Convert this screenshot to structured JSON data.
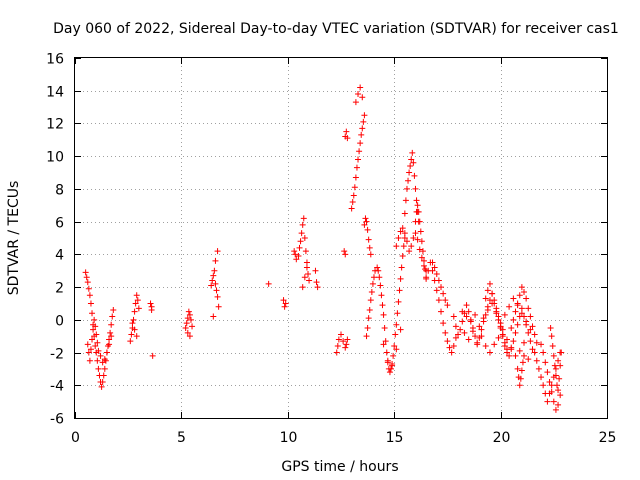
{
  "chart_data": {
    "type": "scatter",
    "title": "Day 060 of 2022, Sidereal Day-to-day VTEC variation (SDTVAR) for receiver cas1",
    "xlabel": "GPS time / hours",
    "ylabel": "SDTVAR / TECUs",
    "xlim": [
      0,
      25
    ],
    "ylim": [
      -6,
      16
    ],
    "grid": true,
    "marker": "+",
    "color": "#ff0000",
    "xticks": [
      "0",
      "5",
      "10",
      "15",
      "20",
      "25"
    ],
    "yticks": [
      "-6",
      "-4",
      "-2",
      "0",
      "2",
      "4",
      "6",
      "8",
      "10",
      "12",
      "14",
      "16"
    ],
    "series": [
      {
        "name": "SDTVAR",
        "x": [
          0.5,
          0.55,
          0.6,
          0.65,
          0.7,
          0.75,
          0.8,
          0.85,
          0.9,
          0.95,
          1.0,
          1.05,
          1.1,
          1.15,
          1.2,
          1.25,
          1.3,
          1.35,
          1.4,
          1.45,
          1.5,
          1.55,
          1.6,
          1.65,
          1.7,
          1.75,
          1.8,
          0.6,
          0.65,
          0.7,
          0.75,
          0.8,
          0.85,
          0.9,
          0.95,
          1.0,
          1.05,
          1.1,
          1.2,
          1.3,
          1.4,
          1.5,
          1.6,
          1.7,
          2.6,
          2.65,
          2.7,
          2.75,
          2.8,
          2.85,
          2.9,
          2.95,
          3.0,
          2.7,
          2.8,
          2.9,
          3.55,
          3.6,
          3.6,
          3.65,
          5.2,
          5.25,
          5.3,
          5.35,
          5.4,
          5.45,
          5.5,
          5.3,
          5.4,
          6.4,
          6.45,
          6.5,
          6.55,
          6.6,
          6.65,
          6.7,
          6.75,
          6.5,
          6.6,
          6.7,
          9.1,
          9.8,
          9.85,
          9.9,
          10.3,
          10.35,
          10.4,
          10.5,
          10.55,
          10.6,
          10.65,
          10.7,
          10.75,
          10.8,
          10.85,
          10.9,
          10.95,
          11.0,
          10.7,
          10.8,
          10.9,
          11.3,
          11.35,
          11.4,
          12.3,
          12.35,
          12.4,
          12.5,
          12.6,
          12.7,
          12.75,
          12.8,
          12.65,
          12.7,
          12.7,
          12.75,
          12.8,
          13.0,
          13.05,
          13.1,
          13.15,
          13.2,
          13.25,
          13.3,
          13.35,
          13.4,
          13.45,
          13.5,
          13.55,
          13.6,
          13.2,
          13.3,
          13.4,
          13.5,
          13.7,
          13.75,
          13.8,
          13.85,
          13.9,
          13.95,
          14.0,
          14.05,
          14.1,
          13.6,
          13.65,
          13.7,
          13.75,
          13.8,
          13.85,
          13.9,
          14.2,
          14.25,
          14.3,
          14.35,
          14.4,
          14.45,
          14.5,
          14.55,
          14.6,
          14.65,
          14.7,
          14.75,
          14.8,
          14.85,
          14.9,
          14.95,
          15.0,
          15.05,
          15.1,
          15.15,
          15.2,
          15.25,
          15.3,
          15.35,
          15.4,
          15.45,
          15.5,
          14.5,
          14.7,
          14.9,
          15.1,
          15.3,
          15.1,
          15.2,
          15.3,
          15.4,
          15.5,
          15.6,
          15.7,
          15.8,
          15.9,
          16.0,
          16.1,
          16.2,
          16.3,
          16.4,
          16.5,
          15.5,
          15.55,
          15.6,
          15.65,
          15.7,
          15.75,
          15.8,
          15.85,
          15.9,
          15.95,
          16.0,
          16.05,
          16.1,
          16.15,
          16.0,
          16.05,
          16.1,
          16.15,
          16.2,
          16.25,
          16.3,
          16.35,
          16.4,
          16.45,
          16.5,
          16.5,
          16.6,
          16.7,
          16.8,
          16.9,
          17.0,
          17.1,
          17.2,
          17.3,
          17.4,
          17.5,
          17.6,
          17.7,
          17.8,
          17.9,
          16.8,
          16.9,
          17.0,
          17.1,
          17.2,
          17.3,
          17.4,
          17.5,
          17.8,
          17.9,
          18.0,
          18.1,
          18.2,
          18.3,
          18.4,
          18.5,
          18.6,
          18.7,
          18.8,
          18.9,
          19.0,
          19.1,
          19.2,
          19.3,
          19.4,
          19.5,
          19.6,
          19.7,
          19.8,
          19.9,
          20.0,
          20.1,
          20.2,
          20.3,
          20.4,
          20.5,
          20.6,
          20.7,
          20.8,
          20.9,
          21.0,
          21.1,
          21.2,
          21.3,
          21.4,
          21.5,
          18.2,
          18.4,
          18.6,
          18.8,
          19.0,
          19.2,
          19.4,
          19.6,
          19.8,
          20.0,
          20.2,
          20.4,
          20.6,
          20.8,
          21.0,
          21.2,
          21.4,
          18.3,
          18.5,
          18.7,
          18.9,
          19.1,
          19.3,
          19.5,
          19.7,
          19.9,
          20.1,
          20.3,
          20.5,
          20.7,
          20.9,
          21.1,
          21.3,
          19.3,
          19.4,
          19.5,
          19.6,
          19.7,
          19.8,
          19.9,
          20.0,
          20.1,
          20.2,
          20.3,
          20.5,
          20.6,
          20.7,
          20.8,
          20.9,
          21.0,
          21.1,
          21.2,
          21.3,
          21.4,
          21.5,
          21.6,
          21.7,
          20.8,
          20.85,
          20.9,
          20.95,
          21.0,
          21.05,
          21.1,
          21.6,
          21.7,
          21.8,
          21.9,
          22.0,
          22.1,
          22.2,
          22.3,
          22.4,
          22.5,
          22.6,
          22.7,
          22.8,
          21.9,
          22.0,
          22.1,
          22.2,
          22.3,
          22.4,
          22.5,
          22.6,
          22.7,
          22.8,
          22.35,
          22.4,
          22.45,
          22.5,
          22.55,
          22.6,
          22.65,
          22.7,
          22.75,
          22.8,
          22.85
        ],
        "y": [
          2.9,
          2.6,
          2.3,
          1.9,
          1.5,
          1.0,
          0.4,
          -0.3,
          -1.0,
          -1.6,
          -2.0,
          -2.5,
          -3.0,
          -3.4,
          -3.8,
          -4.1,
          -3.8,
          -3.4,
          -3.0,
          -2.5,
          -2.0,
          -1.6,
          -1.2,
          -0.8,
          -0.3,
          0.2,
          0.6,
          -1.5,
          -2.0,
          -2.5,
          -1.8,
          -1.2,
          -0.6,
          0.0,
          -0.4,
          -0.9,
          -1.4,
          -1.9,
          -2.2,
          -2.6,
          -2.4,
          -2.0,
          -1.5,
          -1.0,
          -1.3,
          -0.9,
          -0.5,
          0.0,
          0.5,
          1.0,
          1.5,
          1.2,
          0.7,
          -0.2,
          -0.6,
          -1.0,
          1.0,
          0.6,
          0.8,
          -2.2,
          -0.5,
          -0.2,
          0.1,
          0.5,
          0.3,
          0.0,
          -0.4,
          -0.8,
          -1.0,
          2.1,
          2.4,
          2.7,
          3.0,
          2.2,
          1.8,
          1.4,
          0.8,
          0.2,
          3.6,
          4.2,
          2.2,
          1.2,
          0.8,
          1.0,
          4.2,
          4.0,
          3.7,
          3.9,
          4.4,
          4.8,
          5.3,
          5.8,
          6.2,
          5.0,
          4.2,
          3.5,
          2.8,
          2.4,
          2.0,
          2.6,
          3.2,
          3.0,
          2.3,
          2.0,
          -2.0,
          -1.6,
          -1.2,
          -0.9,
          -1.3,
          -1.7,
          -1.5,
          -1.2,
          4.2,
          4.0,
          11.2,
          11.5,
          11.1,
          6.8,
          7.2,
          7.6,
          8.1,
          8.7,
          9.3,
          9.8,
          10.3,
          10.8,
          11.3,
          11.7,
          12.1,
          12.5,
          13.3,
          13.8,
          14.2,
          13.6,
          -1.0,
          -0.5,
          0.1,
          0.6,
          1.2,
          1.7,
          2.2,
          2.6,
          3.0,
          5.8,
          6.2,
          6.0,
          5.5,
          4.9,
          4.4,
          4.0,
          3.2,
          3.0,
          2.6,
          2.1,
          1.5,
          0.9,
          0.3,
          -0.5,
          -1.3,
          -2.0,
          -2.6,
          -3.0,
          -3.2,
          -3.0,
          -2.7,
          -2.2,
          -1.6,
          -0.9,
          -0.3,
          0.4,
          1.1,
          1.8,
          2.5,
          3.2,
          3.9,
          4.5,
          5.0,
          -1.5,
          -2.5,
          -2.8,
          -1.8,
          -0.6,
          4.5,
          5.0,
          5.4,
          5.6,
          5.3,
          4.8,
          4.2,
          4.5,
          5.0,
          5.3,
          4.9,
          4.3,
          3.8,
          3.3,
          3.0,
          6.5,
          7.3,
          8.0,
          8.5,
          9.0,
          9.4,
          9.8,
          10.2,
          9.6,
          8.8,
          8.0,
          7.3,
          6.6,
          6.0,
          6.0,
          6.6,
          7.0,
          6.6,
          6.0,
          5.4,
          4.8,
          4.2,
          3.6,
          3.1,
          2.6,
          2.5,
          3.0,
          3.5,
          3.0,
          2.4,
          1.8,
          1.2,
          0.5,
          -0.2,
          -0.8,
          -1.3,
          -1.7,
          -2.0,
          -1.6,
          -1.1,
          3.5,
          3.2,
          2.8,
          2.4,
          2.0,
          1.6,
          1.2,
          0.9,
          0.2,
          -0.4,
          -0.9,
          -0.6,
          -0.1,
          0.4,
          0.9,
          0.5,
          0.0,
          -0.5,
          -1.0,
          -1.5,
          -1.1,
          -0.6,
          -0.1,
          0.3,
          0.8,
          1.2,
          1.6,
          1.2,
          0.7,
          0.2,
          -0.4,
          -0.9,
          -1.4,
          -1.8,
          -2.2,
          -1.8,
          -1.3,
          -0.8,
          -0.3,
          0.2,
          0.7,
          0.2,
          -0.3,
          -0.8,
          -1.3,
          -1.8,
          0.5,
          0.2,
          -0.1,
          0.3,
          -0.4,
          0.1,
          0.6,
          1.0,
          0.4,
          -0.2,
          0.3,
          0.8,
          1.3,
          0.9,
          0.4,
          -0.1,
          -0.6,
          -0.8,
          -1.2,
          -0.7,
          -1.4,
          -1.0,
          -1.6,
          -2.0,
          -1.5,
          -1.1,
          -0.6,
          -1.2,
          -1.7,
          -2.2,
          -1.9,
          -1.4,
          -2.4,
          1.3,
          1.8,
          2.2,
          1.6,
          1.0,
          0.5,
          0.0,
          -0.5,
          -1.0,
          -1.6,
          -2.0,
          -0.5,
          0.0,
          0.5,
          1.0,
          1.5,
          2.0,
          1.7,
          1.3,
          0.7,
          0.2,
          -0.4,
          -0.9,
          -1.4,
          -3.0,
          -3.5,
          -4.0,
          -3.6,
          -3.1,
          -2.6,
          -2.2,
          -2.0,
          -2.5,
          -3.0,
          -3.5,
          -4.0,
          -4.5,
          -5.0,
          -4.5,
          -4.0,
          -3.5,
          -3.0,
          -2.5,
          -2.0,
          -1.5,
          -2.0,
          -2.6,
          -3.2,
          -3.8,
          -4.4,
          -5.0,
          -5.5,
          -5.2,
          -4.6,
          -0.5,
          -1.0,
          -1.6,
          -2.2,
          -2.8,
          -3.4,
          -4.0,
          -4.3,
          -3.6,
          -2.8,
          -2.0
        ]
      }
    ]
  }
}
